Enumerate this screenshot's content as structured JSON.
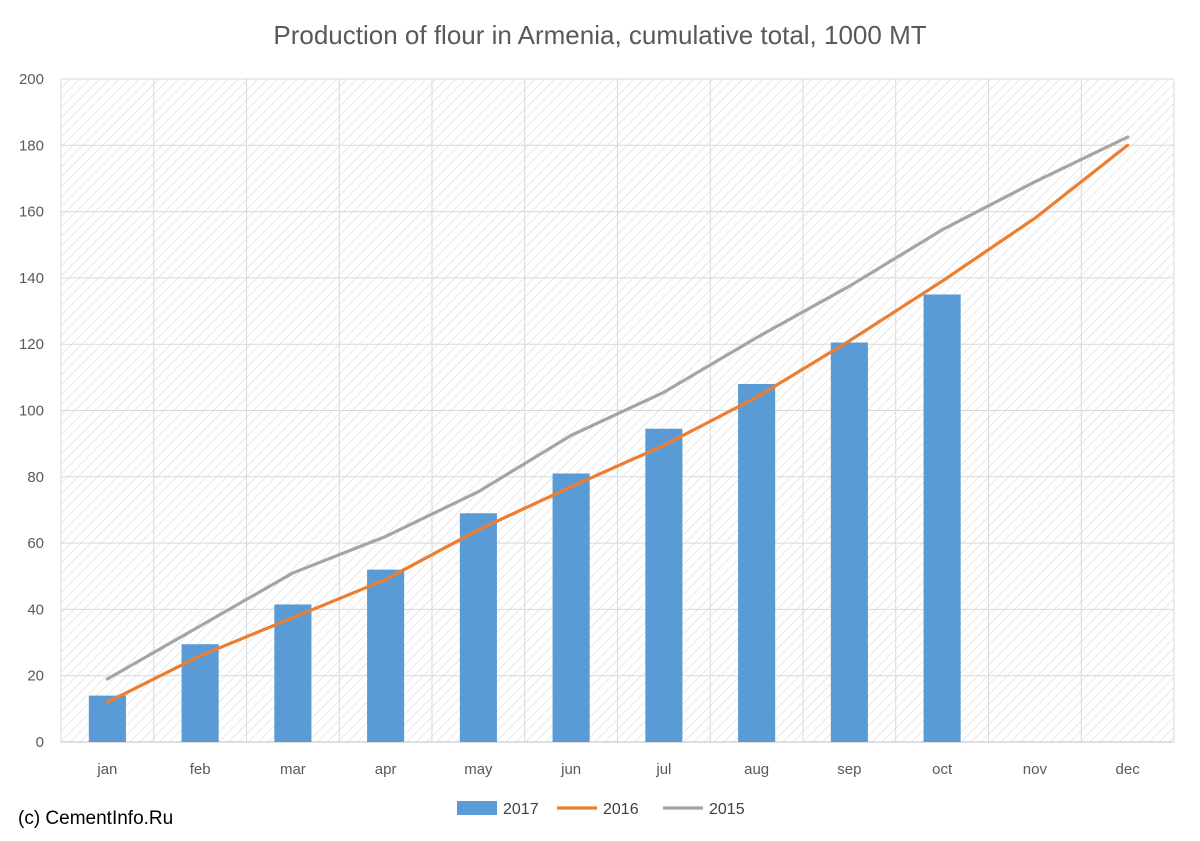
{
  "chart_data": {
    "type": "bar",
    "title": "Production of flour in Armenia, cumulative total, 1000 MT",
    "categories": [
      "jan",
      "feb",
      "mar",
      "apr",
      "may",
      "jun",
      "jul",
      "aug",
      "sep",
      "oct",
      "nov",
      "dec"
    ],
    "ylim": [
      0,
      200
    ],
    "yticks": [
      0,
      20,
      40,
      60,
      80,
      100,
      120,
      140,
      160,
      180,
      200
    ],
    "grid": true,
    "legend_position": "bottom",
    "series": [
      {
        "name": "2017",
        "type": "bar",
        "color": "#5b9bd5",
        "values": [
          14,
          29.5,
          41.5,
          52,
          69,
          81,
          94.5,
          108,
          120.5,
          135,
          null,
          null
        ]
      },
      {
        "name": "2016",
        "type": "line",
        "color": "#ed7d31",
        "values": [
          12,
          26,
          37.5,
          49,
          64,
          77,
          89.5,
          104,
          121,
          139,
          158,
          180
        ]
      },
      {
        "name": "2015",
        "type": "line",
        "color": "#a5a5a5",
        "values": [
          19,
          35,
          51,
          62,
          75.5,
          92.5,
          105.5,
          122,
          137.5,
          154.5,
          169,
          182.5
        ]
      }
    ]
  },
  "source_credit": "(c) CementInfo.Ru"
}
